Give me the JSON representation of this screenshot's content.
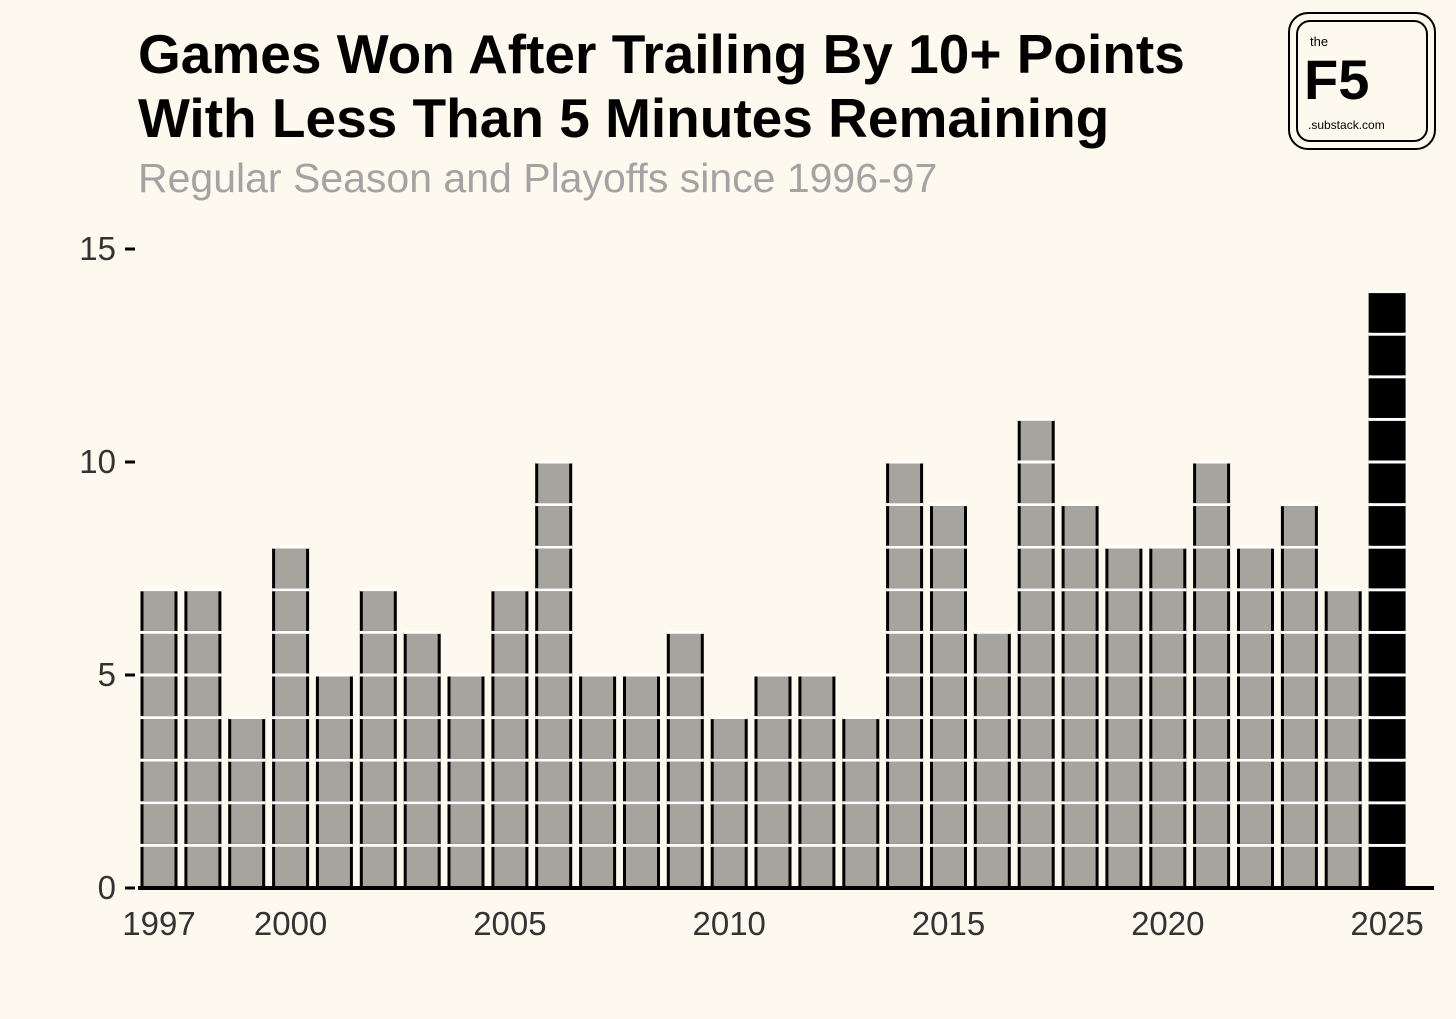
{
  "title_lines": [
    "Games Won After Trailing By 10+ Points",
    "With Less Than 5 Minutes Remaining"
  ],
  "subtitle": "Regular Season and Playoffs since 1996-97",
  "logo": {
    "small": "the",
    "big": "F5",
    "domain": ".substack.com"
  },
  "colors": {
    "background": "#fdf9ee",
    "bar_default": "#a7a49d",
    "bar_highlight": "#000000",
    "block_gap": "#ffffff",
    "axis": "#000000"
  },
  "chart_data": {
    "type": "bar",
    "style": "stacked unit blocks (one block per game)",
    "x": [
      1997,
      1998,
      1999,
      2000,
      2001,
      2002,
      2003,
      2004,
      2005,
      2006,
      2007,
      2008,
      2009,
      2010,
      2011,
      2012,
      2013,
      2014,
      2015,
      2016,
      2017,
      2018,
      2019,
      2020,
      2021,
      2022,
      2023,
      2024,
      2025
    ],
    "values": [
      7,
      7,
      4,
      8,
      5,
      7,
      6,
      5,
      7,
      10,
      5,
      5,
      6,
      4,
      5,
      5,
      4,
      10,
      9,
      6,
      11,
      9,
      8,
      8,
      10,
      8,
      9,
      7,
      14
    ],
    "highlight": [
      2025
    ],
    "x_ticks": [
      1997,
      2000,
      2005,
      2010,
      2015,
      2020,
      2025
    ],
    "y_ticks": [
      0,
      5,
      10,
      15
    ],
    "ylim": [
      0,
      15
    ],
    "xlabel": "",
    "ylabel": "",
    "grid": false,
    "legend": "none"
  }
}
